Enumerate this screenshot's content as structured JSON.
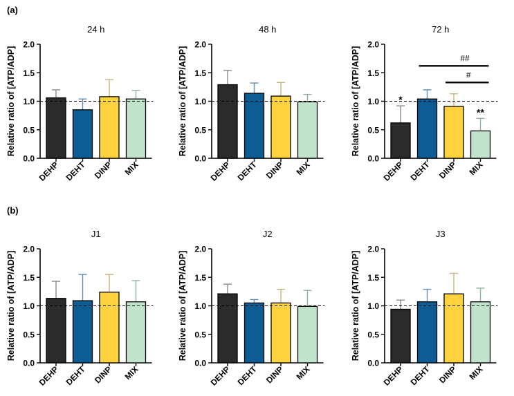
{
  "panels": [
    {
      "label": "(a)"
    },
    {
      "label": "(b)"
    }
  ],
  "categories": [
    "DEHP",
    "DEHT",
    "DINP",
    "MIX"
  ],
  "colors": {
    "DEHP": "#2b2b2b",
    "DEHT": "#0d5c93",
    "DINP": "#fdd23d",
    "MIX": "#bfe3cb",
    "axis": "#000000",
    "errorbar": {
      "DEHP": "#8a8a8a",
      "DEHT": "#5f8eb2",
      "DINP": "#c9b27e",
      "MIX": "#8fb39c"
    }
  },
  "chart_data": [
    {
      "type": "bar",
      "title": "24 h",
      "ylabel": "Relative ratio of [ATP/ADP]",
      "ylim": [
        0,
        2.0
      ],
      "yticks": [
        "0.0",
        "0.5",
        "1.0",
        "1.5",
        "2.0"
      ],
      "reference_line": 1.0,
      "categories": [
        "DEHP",
        "DEHT",
        "DINP",
        "MIX"
      ],
      "values": [
        1.06,
        0.85,
        1.08,
        1.04
      ],
      "errors": [
        0.14,
        0.19,
        0.3,
        0.15
      ],
      "annotations": []
    },
    {
      "type": "bar",
      "title": "48 h",
      "ylabel": "Relative ratio of [ATP/ADP]",
      "ylim": [
        0,
        2.0
      ],
      "yticks": [
        "0.0",
        "0.5",
        "1.0",
        "1.5",
        "2.0"
      ],
      "reference_line": 1.0,
      "categories": [
        "DEHP",
        "DEHT",
        "DINP",
        "MIX"
      ],
      "values": [
        1.29,
        1.14,
        1.09,
        0.99
      ],
      "errors": [
        0.25,
        0.18,
        0.24,
        0.13
      ],
      "annotations": []
    },
    {
      "type": "bar",
      "title": "72 h",
      "ylabel": "Relative ratio of [ATP/ADP]",
      "ylim": [
        0,
        2.0
      ],
      "yticks": [
        "0.0",
        "0.5",
        "1.0",
        "1.5",
        "2.0"
      ],
      "reference_line": 1.0,
      "categories": [
        "DEHP",
        "DEHT",
        "DINP",
        "MIX"
      ],
      "values": [
        0.62,
        1.04,
        0.91,
        0.48
      ],
      "errors": [
        0.3,
        0.16,
        0.22,
        0.22
      ],
      "annotations": [
        {
          "text": "*",
          "over": 0
        },
        {
          "text": "**",
          "over": 3
        }
      ],
      "brackets": [
        {
          "text": "##",
          "from": 1,
          "to": 3,
          "y": 1.62
        },
        {
          "text": "#",
          "from": 2,
          "to": 3,
          "y": 1.33
        }
      ]
    },
    {
      "type": "bar",
      "title": "J1",
      "ylabel": "Relative ratio of [ATP/ADP]",
      "ylim": [
        0,
        2.0
      ],
      "yticks": [
        "0.0",
        "0.5",
        "1.0",
        "1.5",
        "2.0"
      ],
      "reference_line": 1.0,
      "categories": [
        "DEHP",
        "DEHT",
        "DINP",
        "MIX"
      ],
      "values": [
        1.13,
        1.09,
        1.24,
        1.07
      ],
      "errors": [
        0.3,
        0.46,
        0.31,
        0.37
      ],
      "annotations": []
    },
    {
      "type": "bar",
      "title": "J2",
      "ylabel": "Relative ratio of [ATP/ADP]",
      "ylim": [
        0,
        2.0
      ],
      "yticks": [
        "0.0",
        "0.5",
        "1.0",
        "1.5",
        "2.0"
      ],
      "reference_line": 1.0,
      "categories": [
        "DEHP",
        "DEHT",
        "DINP",
        "MIX"
      ],
      "values": [
        1.21,
        1.05,
        1.05,
        0.99
      ],
      "errors": [
        0.17,
        0.06,
        0.24,
        0.28
      ],
      "annotations": []
    },
    {
      "type": "bar",
      "title": "J3",
      "ylabel": "Relative ratio of [ATP/ADP]",
      "ylim": [
        0,
        2.0
      ],
      "yticks": [
        "0.0",
        "0.5",
        "1.0",
        "1.5",
        "2.0"
      ],
      "reference_line": 1.0,
      "categories": [
        "DEHP",
        "DEHT",
        "DINP",
        "MIX"
      ],
      "values": [
        0.94,
        1.07,
        1.21,
        1.07
      ],
      "errors": [
        0.16,
        0.22,
        0.36,
        0.24
      ],
      "annotations": []
    }
  ]
}
